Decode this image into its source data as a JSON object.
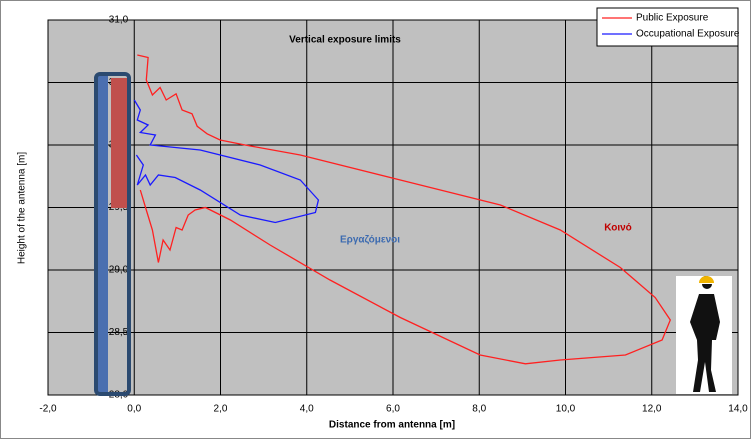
{
  "chart_data": {
    "type": "line",
    "title": "Vertical exposure limits",
    "x_label": "Distance from antenna [m]",
    "y_label": "Height of the antenna [m]",
    "annotations": [
      "Εργαζόμενοι",
      "Κοινό"
    ],
    "xlim": [
      -2,
      14
    ],
    "ylim": [
      28,
      31
    ],
    "xticks": [
      {
        "value": -2,
        "label": "-2,0"
      },
      {
        "value": 0,
        "label": "0,0"
      },
      {
        "value": 2,
        "label": "2,0"
      },
      {
        "value": 4,
        "label": "4,0"
      },
      {
        "value": 6,
        "label": "6,0"
      },
      {
        "value": 8,
        "label": "8,0"
      },
      {
        "value": 10,
        "label": "10,0"
      },
      {
        "value": 12,
        "label": "12,0"
      },
      {
        "value": 14,
        "label": "14,0"
      }
    ],
    "yticks": [
      {
        "value": 28,
        "label": "28,0"
      },
      {
        "value": 28.5,
        "label": "28,5"
      },
      {
        "value": 29,
        "label": "29,0"
      },
      {
        "value": 29.5,
        "label": "29,5"
      },
      {
        "value": 30,
        "label": "30,0"
      },
      {
        "value": 30.5,
        "label": "30,5"
      },
      {
        "value": 31,
        "label": "31,0"
      }
    ],
    "grid": true,
    "legend": "top-right",
    "series": [
      {
        "name": "Public Exposure",
        "color": "#ff2020",
        "x": [
          0.07,
          0.32,
          0.28,
          0.42,
          0.6,
          0.74,
          0.97,
          1.11,
          1.34,
          1.46,
          1.69,
          1.99,
          2.57,
          3.85,
          6.17,
          8.49,
          9.88,
          11.27,
          12.08,
          12.43,
          12.24,
          11.39,
          9.88,
          9.07,
          8.02,
          6.17,
          4.54,
          3.15,
          2.23,
          1.65,
          1.41,
          1.25,
          1.11,
          0.97,
          0.83,
          0.67,
          0.56,
          0.42,
          0.28,
          0.14
        ],
        "values": [
          30.72,
          30.7,
          30.52,
          30.4,
          30.46,
          30.36,
          30.41,
          30.28,
          30.25,
          30.15,
          30.09,
          30.04,
          30,
          29.92,
          29.72,
          29.52,
          29.32,
          29.02,
          28.78,
          28.6,
          28.44,
          28.32,
          28.28,
          28.25,
          28.32,
          28.62,
          28.92,
          29.2,
          29.4,
          29.5,
          29.48,
          29.44,
          29.32,
          29.34,
          29.16,
          29.24,
          29.06,
          29.32,
          29.48,
          29.64
        ]
      },
      {
        "name": "Occupational Exposure",
        "color": "#1a1aff",
        "x": [
          0,
          0.14,
          0.07,
          0.32,
          0.14,
          0.49,
          0.37,
          1.53,
          2.92,
          3.85,
          4.27,
          4.2,
          3.27,
          2.46,
          1.53,
          0.95,
          0.56,
          0.37,
          0.26,
          0.07,
          0.21,
          0.05
        ],
        "values": [
          30.36,
          30.28,
          30.2,
          30.16,
          30.1,
          30.08,
          30,
          29.96,
          29.84,
          29.72,
          29.56,
          29.46,
          29.38,
          29.44,
          29.64,
          29.74,
          29.76,
          29.68,
          29.76,
          29.68,
          29.84,
          29.92
        ]
      }
    ]
  }
}
